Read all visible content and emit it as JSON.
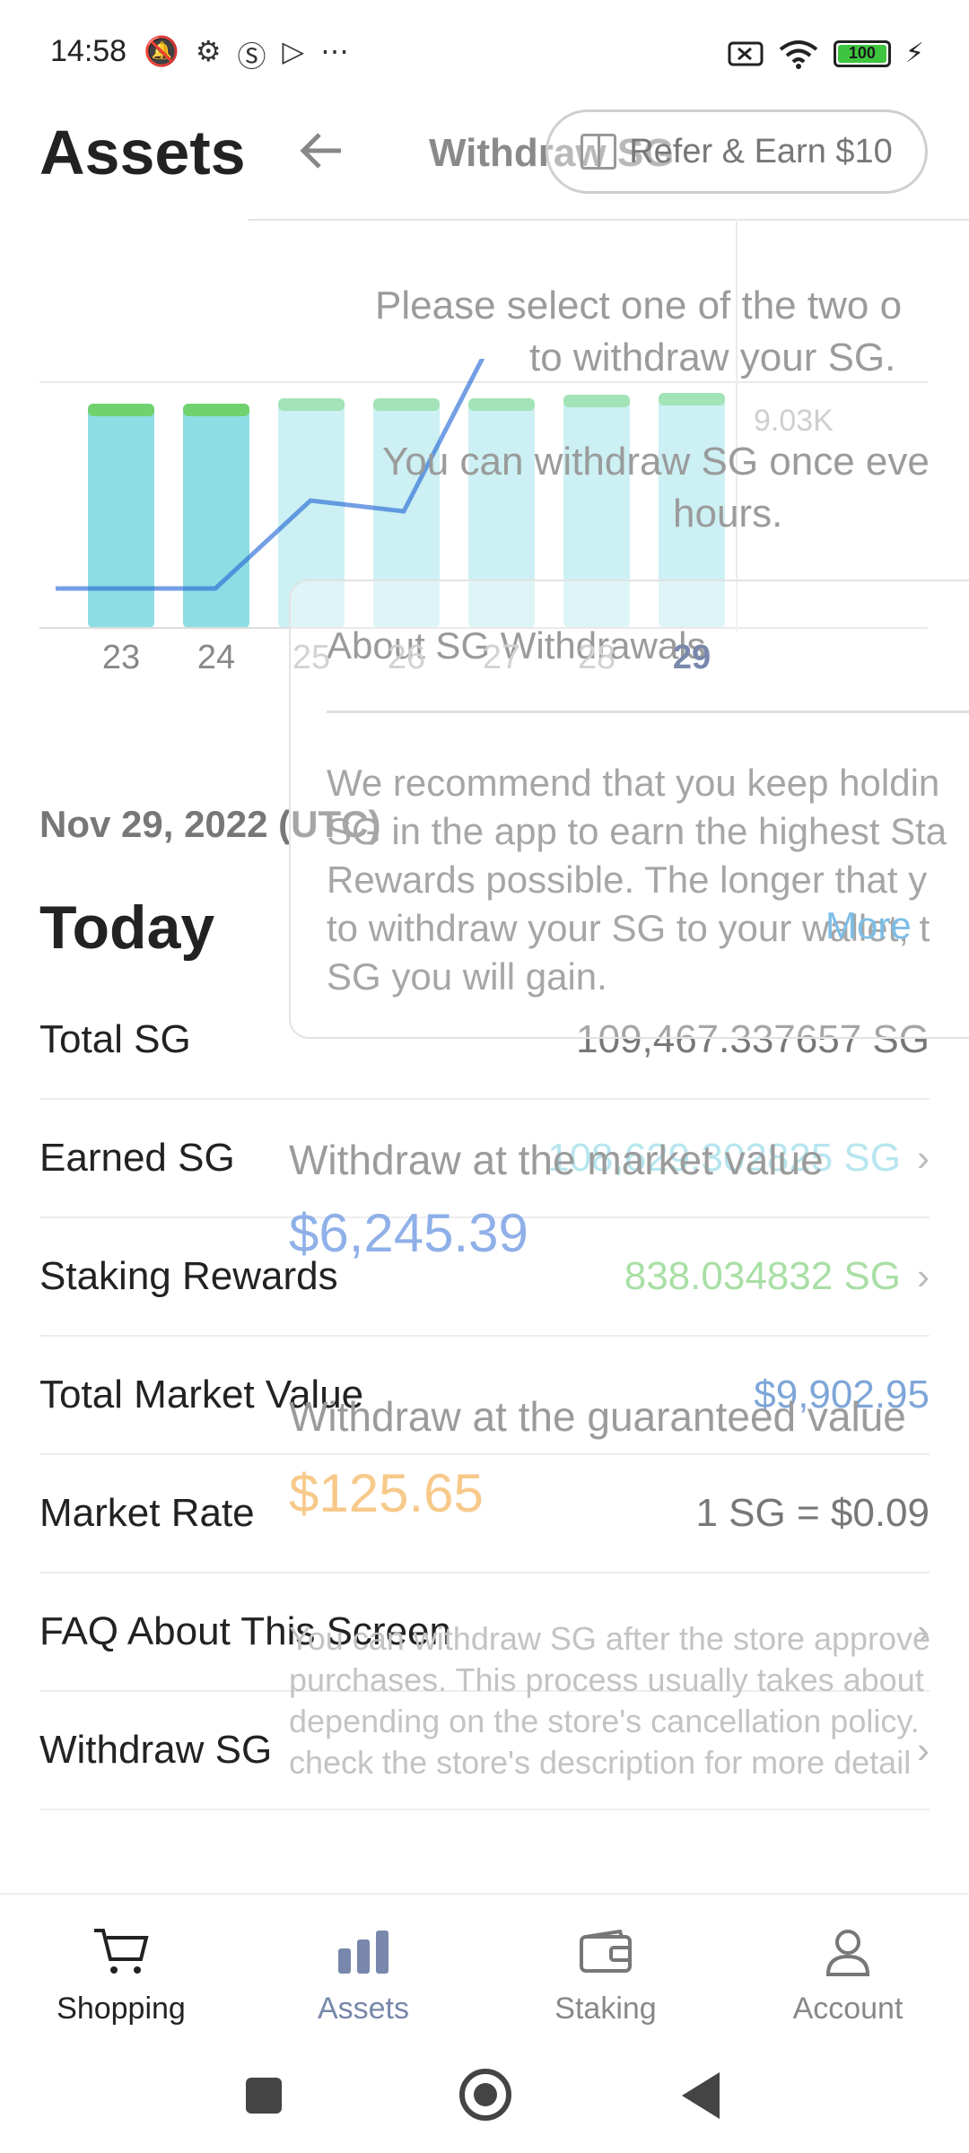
{
  "status_bar": {
    "time": "14:58",
    "left_icons": [
      "mute-icon",
      "gear-icon",
      "s-icon",
      "play-icon",
      "more-icon"
    ],
    "battery": "100"
  },
  "header": {
    "title": "Assets"
  },
  "chart_data": {
    "type": "bar",
    "categories": [
      "23",
      "24",
      "25",
      "26",
      "27",
      "28",
      "29"
    ],
    "selected_category": "29",
    "value_label": "9.03K",
    "bar_colors": {
      "base": "#8ddde4",
      "cap": "#6fd26f"
    },
    "line_color": "#2a6cd6"
  },
  "summary": {
    "date": "Nov 29, 2022 (UTC)",
    "section_title": "Today",
    "rows": [
      {
        "label": "Total SG",
        "value": "109,467.337657 SG",
        "color": "#777777",
        "chevron": false
      },
      {
        "label": "Earned SG",
        "value": "108,629.302825 SG",
        "color": "#b7e6ef",
        "chevron": true
      },
      {
        "label": "Staking Rewards",
        "value": "838.034832 SG",
        "color": "#a9dfa5",
        "chevron": true
      },
      {
        "label": "Total Market Value",
        "value": "$9,902.95",
        "color": "#7ea6d8",
        "chevron": false
      },
      {
        "label": "Market Rate",
        "value": "1 SG = $0.09",
        "color": "#777777",
        "chevron": false
      },
      {
        "label": "FAQ About This Screen",
        "value": "",
        "color": "#777777",
        "chevron": true
      },
      {
        "label": "Withdraw SG",
        "value": "",
        "color": "#777777",
        "chevron": true
      }
    ]
  },
  "overlay": {
    "title": "Withdraw SG",
    "refer_button": "Refer & Earn $10",
    "intro_line1": "Please select one of the two o",
    "intro_line2": "to withdraw your SG.",
    "interval_line1": "You can withdraw SG once eve",
    "interval_line2": "hours.",
    "card": {
      "heading": "About SG Withdrawals",
      "body_line1": "We recommend that you keep holdin",
      "body_line2": "SG in the app to earn the highest Sta",
      "body_line3": "Rewards possible. The longer that y",
      "body_line4": "to withdraw your SG to your wallet, t",
      "body_line5": "SG you will gain.",
      "more": "More"
    },
    "option_market": {
      "label": "Withdraw at the market value",
      "price": "$6,245.39",
      "color": "#8fb0e8"
    },
    "option_guaranteed": {
      "label": "Withdraw at the guaranteed value",
      "price": "$125.65",
      "color": "#f7c98a"
    },
    "note_line1": "You can withdraw SG after the store approve",
    "note_line2": "purchases. This process usually takes about",
    "note_line3": "depending on the store's cancellation policy.",
    "note_line4": "check the store's description for more detail"
  },
  "bottom_nav": {
    "items": [
      {
        "label": "Shopping",
        "icon": "cart-icon"
      },
      {
        "label": "Assets",
        "icon": "bar-chart-icon"
      },
      {
        "label": "Staking",
        "icon": "wallet-icon"
      },
      {
        "label": "Account",
        "icon": "person-icon"
      }
    ]
  }
}
